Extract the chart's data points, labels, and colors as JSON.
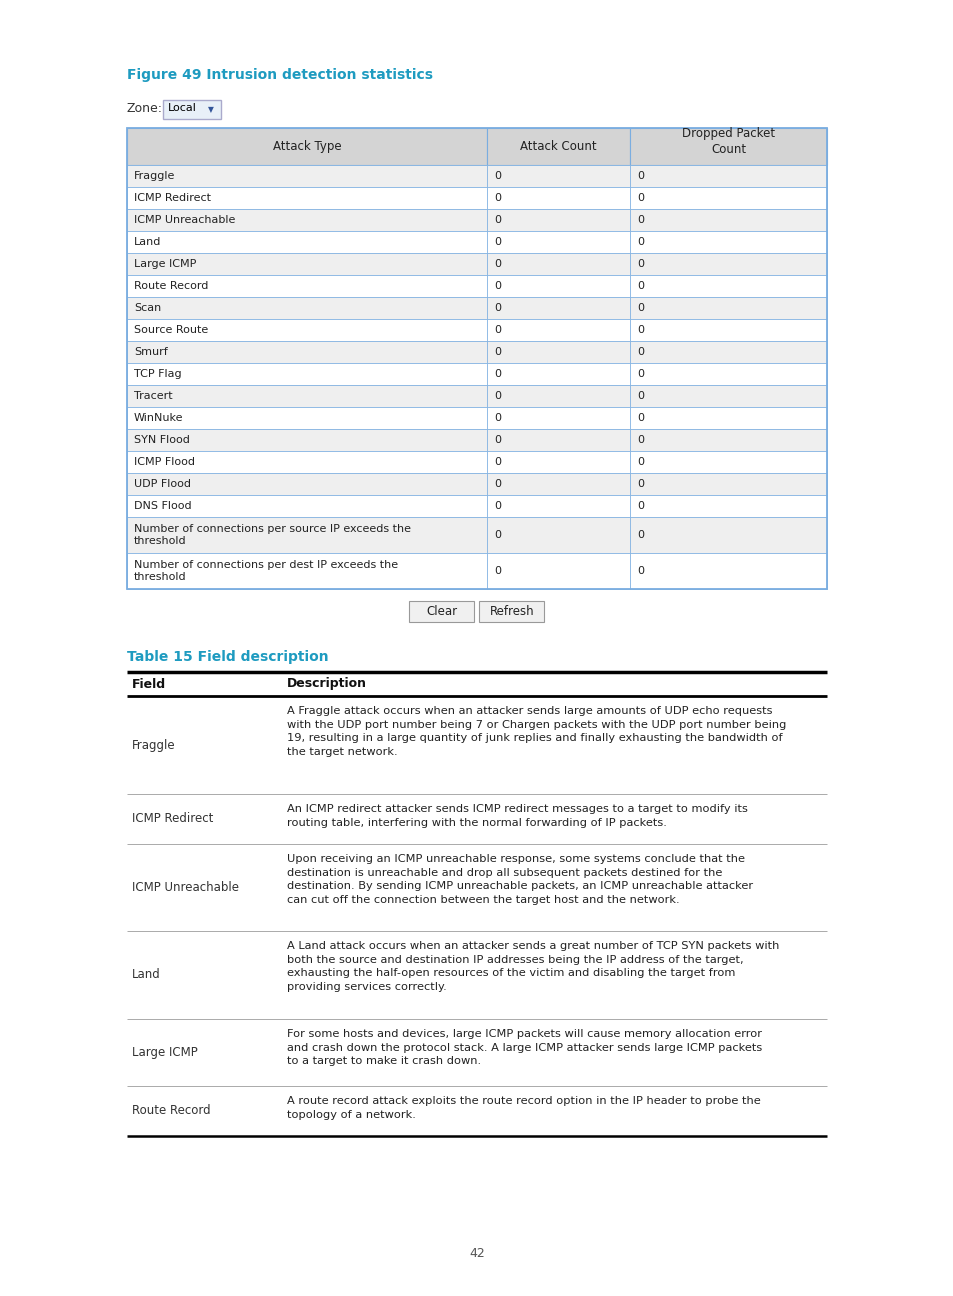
{
  "page_bg": "#ffffff",
  "figure_title": "Figure 49 Intrusion detection statistics",
  "figure_title_color": "#1e9bc0",
  "zone_label": "Zone:",
  "zone_value": "Local",
  "table1_header": [
    "Attack Type",
    "Attack Count",
    "Dropped Packet\nCount"
  ],
  "table1_rows": [
    [
      "Fraggle",
      "0",
      "0"
    ],
    [
      "ICMP Redirect",
      "0",
      "0"
    ],
    [
      "ICMP Unreachable",
      "0",
      "0"
    ],
    [
      "Land",
      "0",
      "0"
    ],
    [
      "Large ICMP",
      "0",
      "0"
    ],
    [
      "Route Record",
      "0",
      "0"
    ],
    [
      "Scan",
      "0",
      "0"
    ],
    [
      "Source Route",
      "0",
      "0"
    ],
    [
      "Smurf",
      "0",
      "0"
    ],
    [
      "TCP Flag",
      "0",
      "0"
    ],
    [
      "Tracert",
      "0",
      "0"
    ],
    [
      "WinNuke",
      "0",
      "0"
    ],
    [
      "SYN Flood",
      "0",
      "0"
    ],
    [
      "ICMP Flood",
      "0",
      "0"
    ],
    [
      "UDP Flood",
      "0",
      "0"
    ],
    [
      "DNS Flood",
      "0",
      "0"
    ],
    [
      "Number of connections per source IP exceeds the\nthreshold",
      "0",
      "0"
    ],
    [
      "Number of connections per dest IP exceeds the\nthreshold",
      "0",
      "0"
    ]
  ],
  "button_clear": "Clear",
  "button_refresh": "Refresh",
  "table2_title": "Table 15 Field description",
  "table2_title_color": "#1e9bc0",
  "table2_rows": [
    [
      "Fraggle",
      "A Fraggle attack occurs when an attacker sends large amounts of UDP echo requests\nwith the UDP port number being 7 or Chargen packets with the UDP port number being\n19, resulting in a large quantity of junk replies and finally exhausting the bandwidth of\nthe target network."
    ],
    [
      "ICMP Redirect",
      "An ICMP redirect attacker sends ICMP redirect messages to a target to modify its\nrouting table, interfering with the normal forwarding of IP packets."
    ],
    [
      "ICMP Unreachable",
      "Upon receiving an ICMP unreachable response, some systems conclude that the\ndestination is unreachable and drop all subsequent packets destined for the\ndestination. By sending ICMP unreachable packets, an ICMP unreachable attacker\ncan cut off the connection between the target host and the network."
    ],
    [
      "Land",
      "A Land attack occurs when an attacker sends a great number of TCP SYN packets with\nboth the source and destination IP addresses being the IP address of the target,\nexhausting the half-open resources of the victim and disabling the target from\nproviding services correctly."
    ],
    [
      "Large ICMP",
      "For some hosts and devices, large ICMP packets will cause memory allocation error\nand crash down the protocol stack. A large ICMP attacker sends large ICMP packets\nto a target to make it crash down."
    ],
    [
      "Route Record",
      "A route record attack exploits the route record option in the IP header to probe the\ntopology of a network."
    ]
  ],
  "page_number": "42",
  "header_bg": "#d4d4d4",
  "row_bg_odd": "#efefef",
  "row_bg_even": "#ffffff",
  "table_border_color": "#7aade0",
  "text_color": "#222222"
}
